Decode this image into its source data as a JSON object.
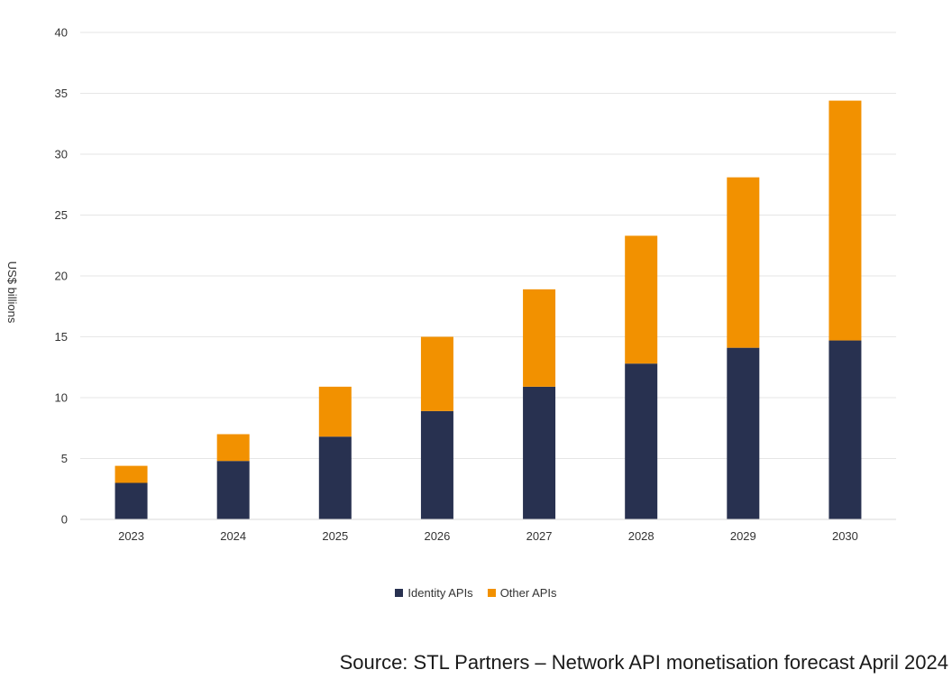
{
  "chart_data": {
    "type": "bar",
    "stacked": true,
    "categories": [
      "2023",
      "2024",
      "2025",
      "2026",
      "2027",
      "2028",
      "2029",
      "2030"
    ],
    "series": [
      {
        "name": "Identity APIs",
        "color": "#283150",
        "values": [
          3.0,
          4.8,
          6.8,
          8.9,
          10.9,
          12.8,
          14.1,
          14.7
        ]
      },
      {
        "name": "Other APIs",
        "color": "#F29100",
        "values": [
          1.4,
          2.2,
          4.1,
          6.1,
          8.0,
          10.5,
          14.0,
          19.7
        ]
      }
    ],
    "ylabel": "US$ billions",
    "yticks": [
      "0",
      "5",
      "10",
      "15",
      "20",
      "25",
      "30",
      "35",
      "40"
    ],
    "ylim": [
      0,
      40
    ],
    "grid": true,
    "legend_position": "bottom-center"
  },
  "source": "Source: STL Partners – Network API monetisation forecast April 2024"
}
